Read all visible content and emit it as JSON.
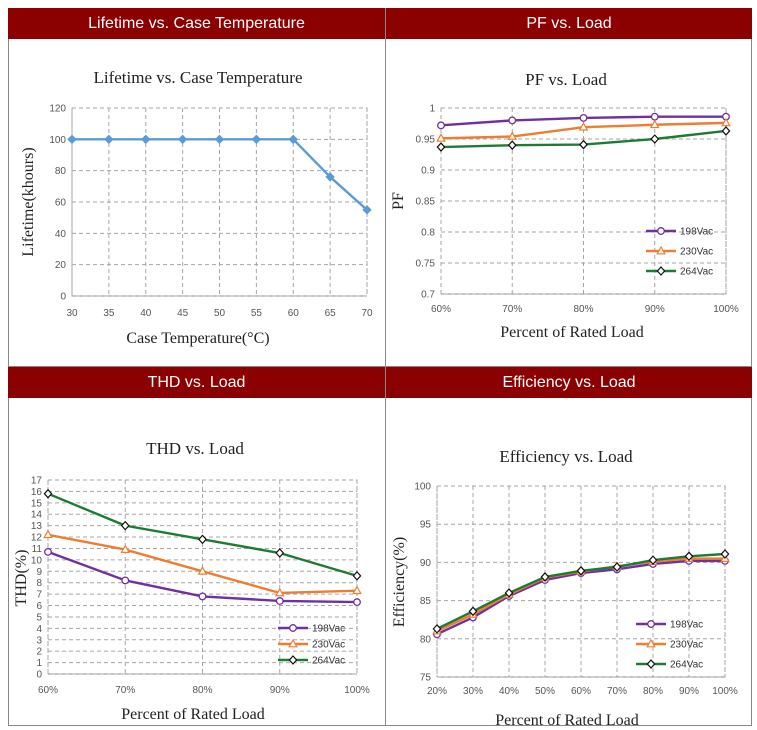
{
  "panels": [
    {
      "header": "Lifetime vs. Case Temperature"
    },
    {
      "header": "PF vs. Load"
    },
    {
      "header": "THD vs. Load"
    },
    {
      "header": "Efficiency vs. Load"
    }
  ],
  "colors": {
    "header_bg": "#8b0000",
    "v198": "#7030a0",
    "v230": "#ed7d31",
    "v264": "#1e7b34",
    "lifetime": "#5b9bd5",
    "grid": "#a6a6a6"
  },
  "chart_data": [
    {
      "type": "line",
      "title": "Lifetime vs. Case Temperature",
      "xlabel": "Case Temperature(°C)",
      "ylabel": "Lifetime(khours)",
      "categories": [
        "30",
        "35",
        "40",
        "45",
        "50",
        "55",
        "60",
        "65",
        "70"
      ],
      "series": [
        {
          "name": "Lifetime",
          "values": [
            100,
            100,
            100,
            100,
            100,
            100,
            100,
            76,
            55
          ]
        }
      ],
      "ylim": [
        0,
        120
      ],
      "yticks": [
        0,
        20,
        40,
        60,
        80,
        100,
        120
      ],
      "ytick_labels": [
        "0",
        "20",
        "40",
        "60",
        "80",
        "100",
        "120"
      ]
    },
    {
      "type": "line",
      "title": "PF vs. Load",
      "xlabel": "Percent of Rated Load",
      "ylabel": "PF",
      "categories": [
        "60%",
        "70%",
        "80%",
        "90%",
        "100%"
      ],
      "series": [
        {
          "name": "198Vac",
          "values": [
            0.972,
            0.98,
            0.984,
            0.986,
            0.986
          ]
        },
        {
          "name": "230Vac",
          "values": [
            0.951,
            0.954,
            0.969,
            0.973,
            0.976
          ]
        },
        {
          "name": "264Vac",
          "values": [
            0.937,
            0.94,
            0.941,
            0.95,
            0.963
          ]
        }
      ],
      "ylim": [
        0.7,
        1.0
      ],
      "yticks": [
        0.7,
        0.75,
        0.8,
        0.85,
        0.9,
        0.95,
        1.0
      ],
      "ytick_labels": [
        "0.7",
        "0.75",
        "0.8",
        "0.85",
        "0.9",
        "0.95",
        "1"
      ]
    },
    {
      "type": "line",
      "title": "THD vs. Load",
      "xlabel": "Percent of Rated Load",
      "ylabel": "THD(%)",
      "categories": [
        "60%",
        "70%",
        "80%",
        "90%",
        "100%"
      ],
      "series": [
        {
          "name": "198Vac",
          "values": [
            10.7,
            8.2,
            6.8,
            6.4,
            6.3
          ]
        },
        {
          "name": "230Vac",
          "values": [
            12.2,
            10.9,
            9.0,
            7.1,
            7.3
          ]
        },
        {
          "name": "264Vac",
          "values": [
            15.8,
            13.0,
            11.8,
            10.6,
            8.6
          ]
        }
      ],
      "ylim": [
        0,
        17
      ],
      "yticks": [
        0,
        1,
        2,
        3,
        4,
        5,
        6,
        7,
        8,
        9,
        10,
        11,
        12,
        13,
        14,
        15,
        16,
        17
      ],
      "ytick_labels": [
        "0",
        "1",
        "2",
        "3",
        "4",
        "5",
        "6",
        "7",
        "8",
        "9",
        "10",
        "11",
        "12",
        "13",
        "14",
        "15",
        "16",
        "17"
      ]
    },
    {
      "type": "line",
      "title": "Efficiency vs. Load",
      "xlabel": "Percent of Rated Load",
      "ylabel": "Efficiency(%)",
      "categories": [
        "20%",
        "30%",
        "40%",
        "50%",
        "60%",
        "70%",
        "80%",
        "90%",
        "100%"
      ],
      "series": [
        {
          "name": "198Vac",
          "values": [
            80.6,
            82.8,
            85.6,
            87.7,
            88.6,
            89.1,
            89.8,
            90.2,
            90.2
          ]
        },
        {
          "name": "230Vac",
          "values": [
            81.0,
            83.2,
            85.8,
            88.0,
            88.8,
            89.5,
            90.1,
            90.5,
            90.5
          ]
        },
        {
          "name": "264Vac",
          "values": [
            81.3,
            83.6,
            86.0,
            88.1,
            88.9,
            89.4,
            90.3,
            90.8,
            91.1
          ]
        }
      ],
      "ylim": [
        75,
        100
      ],
      "yticks": [
        75,
        80,
        85,
        90,
        95,
        100
      ],
      "ytick_labels": [
        "75",
        "80",
        "85",
        "90",
        "95",
        "100"
      ]
    }
  ]
}
